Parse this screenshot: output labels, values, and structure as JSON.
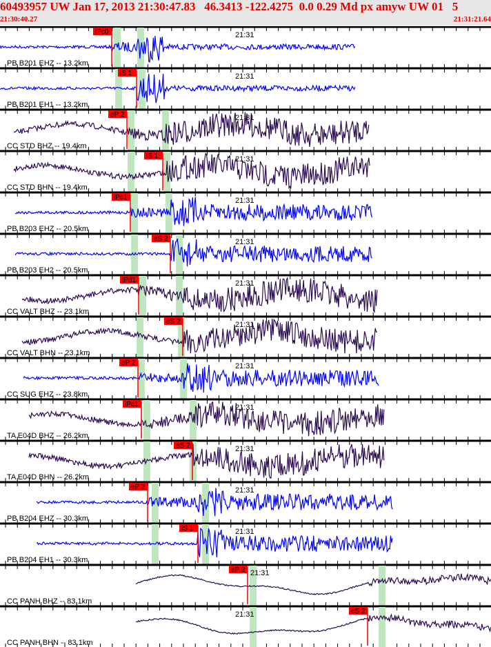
{
  "header": {
    "title": "60493957 UW Jan 17, 2013 21:30:47.83   46.3413 -122.4275  0.0 0.29 Md px amyw UW 01   5",
    "start_time": "21:30:40.27",
    "end_time": "21:31:21.64",
    "minute_label": "21:31"
  },
  "colors": {
    "header_text": "#e00000",
    "highfreq": "#0000ff",
    "broadband": "#2a0a50",
    "pick": "#ff0000",
    "window": "#bfe6bf"
  },
  "traces": [
    {
      "label": "PB B201 EHZ -- 13.2km",
      "pick": "iPc0"
    },
    {
      "label": "PB B201 EH1 -- 13.2km",
      "pick": "iS 1"
    },
    {
      "label": "CC STD BHZ -- 19.4km",
      "pick": "eP 2"
    },
    {
      "label": "CC STD BHN -- 19.4km",
      "pick": "iS 1"
    },
    {
      "label": "PB B203 EHZ -- 20.5km",
      "pick": "iPc1"
    },
    {
      "label": "PB B203 EH2 -- 20.5km",
      "pick": "eS 2"
    },
    {
      "label": "CC VALT BHZ -- 23.1km",
      "pick": "iPd1"
    },
    {
      "label": "CC VALT BHN -- 23.1km",
      "pick": "eS 2"
    },
    {
      "label": "CC SUG EHZ -- 23.8km",
      "pick": "eP 2"
    },
    {
      "label": "TA E04D BHZ -- 26.2km",
      "pick": "iPc1"
    },
    {
      "label": "TA E04D BHN -- 26.2km",
      "pick": "eS 2"
    },
    {
      "label": "PB B204 EHZ -- 30.3km",
      "pick": "eP 2"
    },
    {
      "label": "PB B204 EH1 -- 30.3km",
      "pick": "iS 1"
    },
    {
      "label": "CC PANH BHZ -- 83.1km",
      "pick": "eP 2"
    },
    {
      "label": "CC PANH BHN -- 83.1km",
      "pick": "eS 2"
    }
  ]
}
